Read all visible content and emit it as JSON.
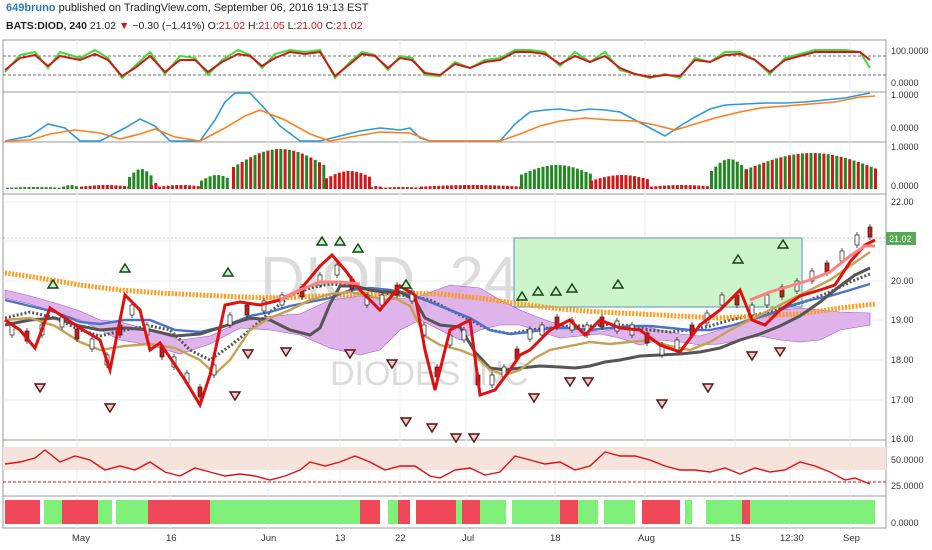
{
  "header": {
    "user": "649bruno",
    "published_text": "published on TradingView.com, September 06, 2016 19:13 EST",
    "symbol": "BATS:DIOD, 240",
    "last": "21.02",
    "change_arrow": "▼",
    "change": "−0.30 (−1.41%)",
    "o_label": "O:",
    "o": "21.02",
    "h_label": "H:",
    "h": "21.05",
    "l_label": "L:",
    "l": "21.00",
    "c_label": "C:",
    "c": "21.02"
  },
  "watermark": {
    "line1": "DIOD, 240",
    "line2": "DIODES INC"
  },
  "colors": {
    "up": "#228822",
    "down": "#d01818",
    "accent": "#2a7ac0",
    "cloud": "#d9a7e8",
    "box": "#ccf5cc"
  },
  "panes": {
    "stoch": {
      "axis": [
        "100.0000",
        "0.0000"
      ]
    },
    "osc": {
      "axis": [
        "1.0000",
        "0.0000"
      ]
    },
    "hist": {
      "axis": [
        "1.0000",
        "0.0000"
      ]
    },
    "price": {
      "axis": [
        "22.00",
        "21.00",
        "20.00",
        "19.00",
        "18.00",
        "17.00",
        "16.00"
      ],
      "last_price_label": "21.02"
    },
    "rsi": {
      "axis": [
        "50.0000",
        "25.0000"
      ]
    },
    "trend": {
      "axis": [
        "0.0000"
      ]
    }
  },
  "x_axis": [
    "May",
    "16",
    "Jun",
    "13",
    "22",
    "Jul",
    "18",
    "Aug",
    "15",
    "12:30",
    "Sep"
  ]
}
